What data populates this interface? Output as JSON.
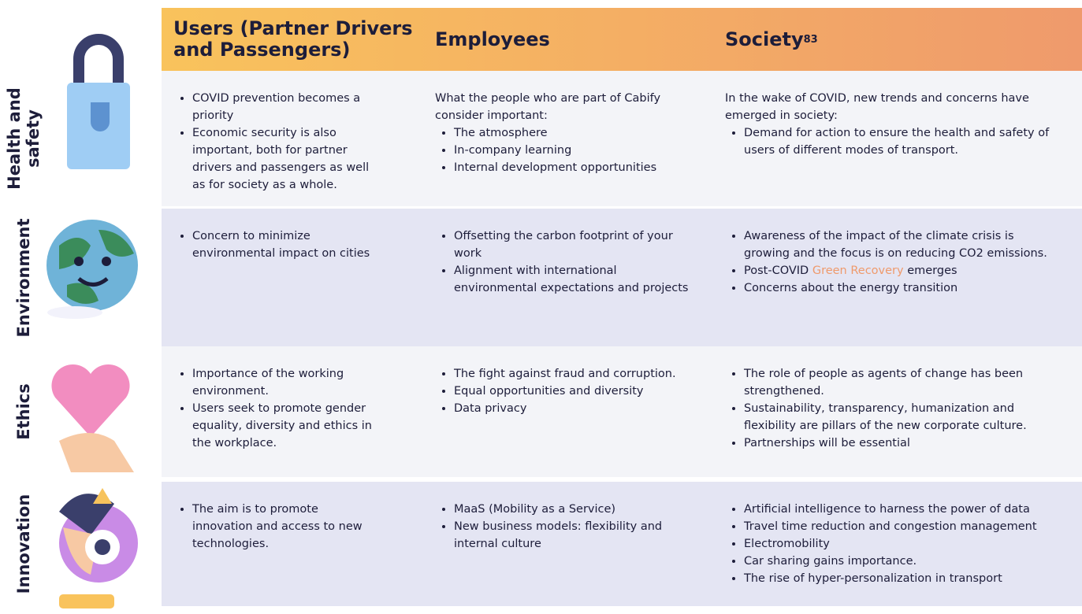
{
  "header": {
    "columns": [
      {
        "text": "Users (Partner Drivers and Passengers)"
      },
      {
        "text": "Employees"
      },
      {
        "text": "Society",
        "sup": "83"
      }
    ]
  },
  "rows": [
    {
      "label": "Health and safety",
      "cells": [
        {
          "bullets": [
            "COVID prevention becomes a priority",
            "Economic security is also important, both for partner drivers and passengers as well as for society as a whole."
          ]
        },
        {
          "intro": "What the people who are part of Cabify consider important:",
          "bullets": [
            "The atmosphere",
            "In-company learning",
            "Internal development opportunities"
          ]
        },
        {
          "intro": "In the wake of COVID, new trends and concerns have emerged in society:",
          "bullets": [
            "Demand for action to ensure the health and safety of users of different modes of transport."
          ]
        }
      ]
    },
    {
      "label": "Environment",
      "cells": [
        {
          "bullets": [
            "Concern to minimize environmental impact on cities"
          ]
        },
        {
          "bullets": [
            "Offsetting the carbon footprint of your work",
            "Alignment with international environmental expectations and projects"
          ]
        },
        {
          "bullets": [
            "Awareness of the impact of the climate crisis is growing and the focus is on reducing CO2 emissions.",
            {
              "before": "Post-COVID",
              "link": "Green Recovery",
              "after": "emerges"
            },
            "Concerns about the energy transition"
          ]
        }
      ]
    },
    {
      "label": "Ethics",
      "cells": [
        {
          "bullets": [
            "Importance of the working environment.",
            "Users seek to promote gender equality, diversity and ethics in the workplace."
          ]
        },
        {
          "bullets": [
            "The fight against fraud and corruption.",
            "Equal opportunities and diversity",
            "Data privacy"
          ]
        },
        {
          "bullets": [
            "The role of people as agents of change has been strengthened.",
            "Sustainability, transparency, humanization and flexibility are pillars of the new corporate culture.",
            "Partnerships will be essential"
          ]
        }
      ]
    },
    {
      "label": "Innovation",
      "cells": [
        {
          "bullets": [
            "The aim is to promote innovation and access to new technologies."
          ]
        },
        {
          "bullets": [
            "MaaS (Mobility as a Service)",
            "New business models: flexibility and internal culture"
          ]
        },
        {
          "bullets": [
            "Artificial intelligence to harness the power of data",
            "Travel time reduction and congestion management",
            "Electromobility",
            "Car sharing gains importance.",
            "The rise of hyper-personalization in transport"
          ]
        }
      ]
    }
  ]
}
